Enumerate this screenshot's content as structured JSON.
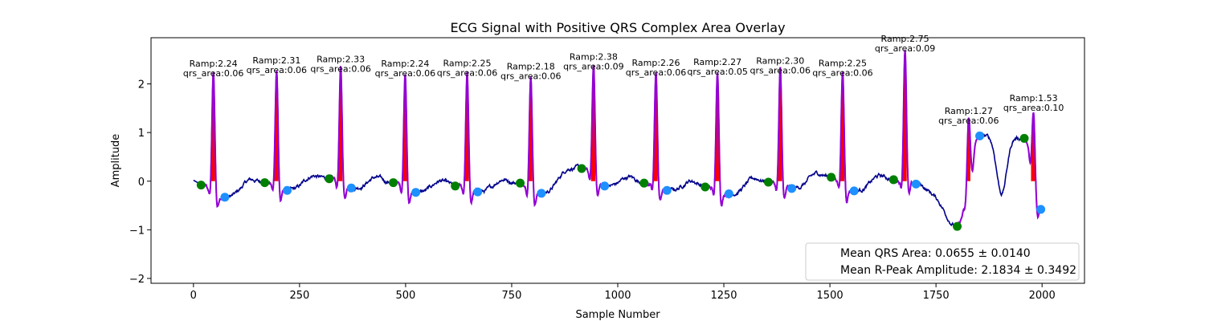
{
  "chart_data": {
    "type": "line",
    "title": "ECG Signal with Positive QRS Complex Area Overlay",
    "xlabel": "Sample Number",
    "ylabel": "Amplitude",
    "xlim": [
      -100,
      2100
    ],
    "ylim": [
      -2.1,
      2.95
    ],
    "xticks": [
      "0",
      "250",
      "500",
      "750",
      "1000",
      "1250",
      "1500",
      "1750",
      "2000"
    ],
    "yticks": [
      "−2",
      "−1",
      "0",
      "1",
      "2"
    ],
    "grid": false,
    "colors": {
      "ecg": "#00008b",
      "qrs_segment": "#9400d3",
      "qrs_area": "#ff0000",
      "q_point": "#008000",
      "s_point": "#1e90ff"
    },
    "beats": [
      {
        "r_x": 47,
        "r_y": 2.24,
        "q_x": 18,
        "q_y": -0.08,
        "s_x": 74,
        "s_y": -0.33,
        "ramp": "Ramp:2.24",
        "area": "qrs_area:0.06"
      },
      {
        "r_x": 196,
        "r_y": 2.31,
        "q_x": 168,
        "q_y": -0.03,
        "s_x": 221,
        "s_y": -0.19,
        "ramp": "Ramp:2.31",
        "area": "qrs_area:0.06"
      },
      {
        "r_x": 347,
        "r_y": 2.33,
        "q_x": 320,
        "q_y": 0.05,
        "s_x": 372,
        "s_y": -0.14,
        "ramp": "Ramp:2.33",
        "area": "qrs_area:0.06"
      },
      {
        "r_x": 499,
        "r_y": 2.24,
        "q_x": 471,
        "q_y": -0.03,
        "s_x": 524,
        "s_y": -0.23,
        "ramp": "Ramp:2.24",
        "area": "qrs_area:0.06"
      },
      {
        "r_x": 645,
        "r_y": 2.25,
        "q_x": 617,
        "q_y": -0.1,
        "s_x": 670,
        "s_y": -0.22,
        "ramp": "Ramp:2.25",
        "area": "qrs_area:0.06"
      },
      {
        "r_x": 795,
        "r_y": 2.18,
        "q_x": 770,
        "q_y": -0.04,
        "s_x": 820,
        "s_y": -0.25,
        "ramp": "Ramp:2.18",
        "area": "qrs_area:0.06"
      },
      {
        "r_x": 943,
        "r_y": 2.38,
        "q_x": 915,
        "q_y": 0.26,
        "s_x": 969,
        "s_y": -0.1,
        "ramp": "Ramp:2.38",
        "area": "qrs_area:0.09"
      },
      {
        "r_x": 1090,
        "r_y": 2.26,
        "q_x": 1062,
        "q_y": -0.04,
        "s_x": 1116,
        "s_y": -0.19,
        "ramp": "Ramp:2.26",
        "area": "qrs_area:0.06"
      },
      {
        "r_x": 1235,
        "r_y": 2.27,
        "q_x": 1206,
        "q_y": -0.12,
        "s_x": 1262,
        "s_y": -0.26,
        "ramp": "Ramp:2.27",
        "area": "qrs_area:0.05"
      },
      {
        "r_x": 1383,
        "r_y": 2.3,
        "q_x": 1355,
        "q_y": -0.02,
        "s_x": 1410,
        "s_y": -0.15,
        "ramp": "Ramp:2.30",
        "area": "qrs_area:0.06"
      },
      {
        "r_x": 1530,
        "r_y": 2.25,
        "q_x": 1503,
        "q_y": 0.08,
        "s_x": 1557,
        "s_y": -0.2,
        "ramp": "Ramp:2.25",
        "area": "qrs_area:0.06"
      },
      {
        "r_x": 1677,
        "r_y": 2.75,
        "q_x": 1650,
        "q_y": 0.03,
        "s_x": 1703,
        "s_y": -0.06,
        "ramp": "Ramp:2.75",
        "area": "qrs_area:0.09"
      },
      {
        "r_x": 1827,
        "r_y": 1.27,
        "q_x": 1800,
        "q_y": -0.93,
        "s_x": 1853,
        "s_y": 0.93,
        "ramp": "Ramp:1.27",
        "area": "qrs_area:0.06"
      },
      {
        "r_x": 1980,
        "r_y": 1.53,
        "q_x": 1958,
        "q_y": 0.88,
        "s_x": 1997,
        "s_y": -0.58,
        "ramp": "Ramp:1.53",
        "area": "qrs_area:0.10"
      }
    ],
    "legend": {
      "placement": "lower-right",
      "entries": [
        "Mean QRS Area: 0.0655 ± 0.0140",
        "Mean R-Peak Amplitude: 2.1834 ± 0.3492"
      ]
    }
  }
}
